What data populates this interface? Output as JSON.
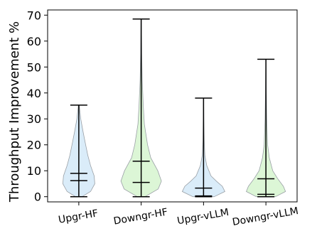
{
  "chart_data": {
    "type": "violin",
    "title": "",
    "xlabel": "",
    "ylabel": "Throughput Improvement %",
    "ylim": [
      -2,
      72
    ],
    "yticks": [
      0,
      10,
      20,
      30,
      40,
      50,
      60,
      70
    ],
    "grid": false,
    "categories": [
      "Upgr-HF",
      "Downgr-HF",
      "Upgr-vLLM",
      "Downgr-vLLM"
    ],
    "colors": [
      "#d6eaf8",
      "#d8f5d2",
      "#d6eaf8",
      "#d8f5d2"
    ],
    "series": [
      {
        "category": "Upgr-HF",
        "min": 0,
        "q1": 6.2,
        "q3": 9.0,
        "max": 35.3,
        "density": [
          [
            0,
            0.15
          ],
          [
            2,
            0.55
          ],
          [
            5,
            0.75
          ],
          [
            8,
            0.72
          ],
          [
            12,
            0.55
          ],
          [
            16,
            0.42
          ],
          [
            20,
            0.32
          ],
          [
            25,
            0.2
          ],
          [
            30,
            0.09
          ],
          [
            35.3,
            0.02
          ]
        ]
      },
      {
        "category": "Downgr-HF",
        "min": 0,
        "q1": 5.5,
        "q3": 13.7,
        "max": 68.5,
        "density": [
          [
            0,
            0.18
          ],
          [
            3,
            0.8
          ],
          [
            6,
            0.95
          ],
          [
            10,
            0.78
          ],
          [
            15,
            0.45
          ],
          [
            20,
            0.3
          ],
          [
            28,
            0.15
          ],
          [
            35,
            0.1
          ],
          [
            45,
            0.05
          ],
          [
            55,
            0.025
          ],
          [
            68.5,
            0.01
          ]
        ]
      },
      {
        "category": "Upgr-vLLM",
        "min": 0,
        "q1": 0.3,
        "q3": 3.3,
        "max": 38.0,
        "density": [
          [
            0,
            0.5
          ],
          [
            2,
            1.0
          ],
          [
            4,
            0.88
          ],
          [
            6,
            0.6
          ],
          [
            8,
            0.35
          ],
          [
            12,
            0.15
          ],
          [
            16,
            0.06
          ],
          [
            22,
            0.03
          ],
          [
            30,
            0.015
          ],
          [
            38,
            0.005
          ]
        ]
      },
      {
        "category": "Downgr-vLLM",
        "min": 0,
        "q1": 0.9,
        "q3": 6.9,
        "max": 53.0,
        "density": [
          [
            0,
            0.45
          ],
          [
            2,
            0.92
          ],
          [
            4,
            0.82
          ],
          [
            7,
            0.55
          ],
          [
            10,
            0.32
          ],
          [
            15,
            0.16
          ],
          [
            20,
            0.08
          ],
          [
            30,
            0.04
          ],
          [
            40,
            0.02
          ],
          [
            53,
            0.005
          ]
        ]
      }
    ]
  }
}
